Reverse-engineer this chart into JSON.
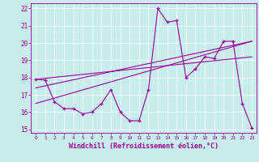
{
  "xlabel": "Windchill (Refroidissement éolien,°C)",
  "bg_color": "#c8ecec",
  "line_color": "#990099",
  "xlim": [
    -0.5,
    23.5
  ],
  "ylim": [
    14.8,
    22.3
  ],
  "yticks": [
    15,
    16,
    17,
    18,
    19,
    20,
    21,
    22
  ],
  "xticks": [
    0,
    1,
    2,
    3,
    4,
    5,
    6,
    7,
    8,
    9,
    10,
    11,
    12,
    13,
    14,
    15,
    16,
    17,
    18,
    19,
    20,
    21,
    22,
    23
  ],
  "line1_x": [
    0,
    1,
    2,
    3,
    4,
    5,
    6,
    7,
    8,
    9,
    10,
    11,
    12,
    13,
    14,
    15,
    16,
    17,
    18,
    19,
    20,
    21,
    22,
    23
  ],
  "line1_y": [
    17.9,
    17.85,
    16.6,
    16.2,
    16.2,
    15.9,
    16.0,
    16.5,
    17.3,
    16.0,
    15.5,
    15.5,
    17.3,
    22.0,
    21.2,
    21.3,
    18.0,
    18.5,
    19.2,
    19.1,
    20.1,
    20.1,
    16.5,
    15.1
  ],
  "line2_x": [
    0,
    23
  ],
  "line2_y": [
    17.9,
    19.2
  ],
  "line3_x": [
    0,
    23
  ],
  "line3_y": [
    17.4,
    20.1
  ],
  "line4_x": [
    0,
    23
  ],
  "line4_y": [
    16.5,
    20.1
  ],
  "xlabel_fontsize": 6.0,
  "tick_fontsize": 5.5
}
